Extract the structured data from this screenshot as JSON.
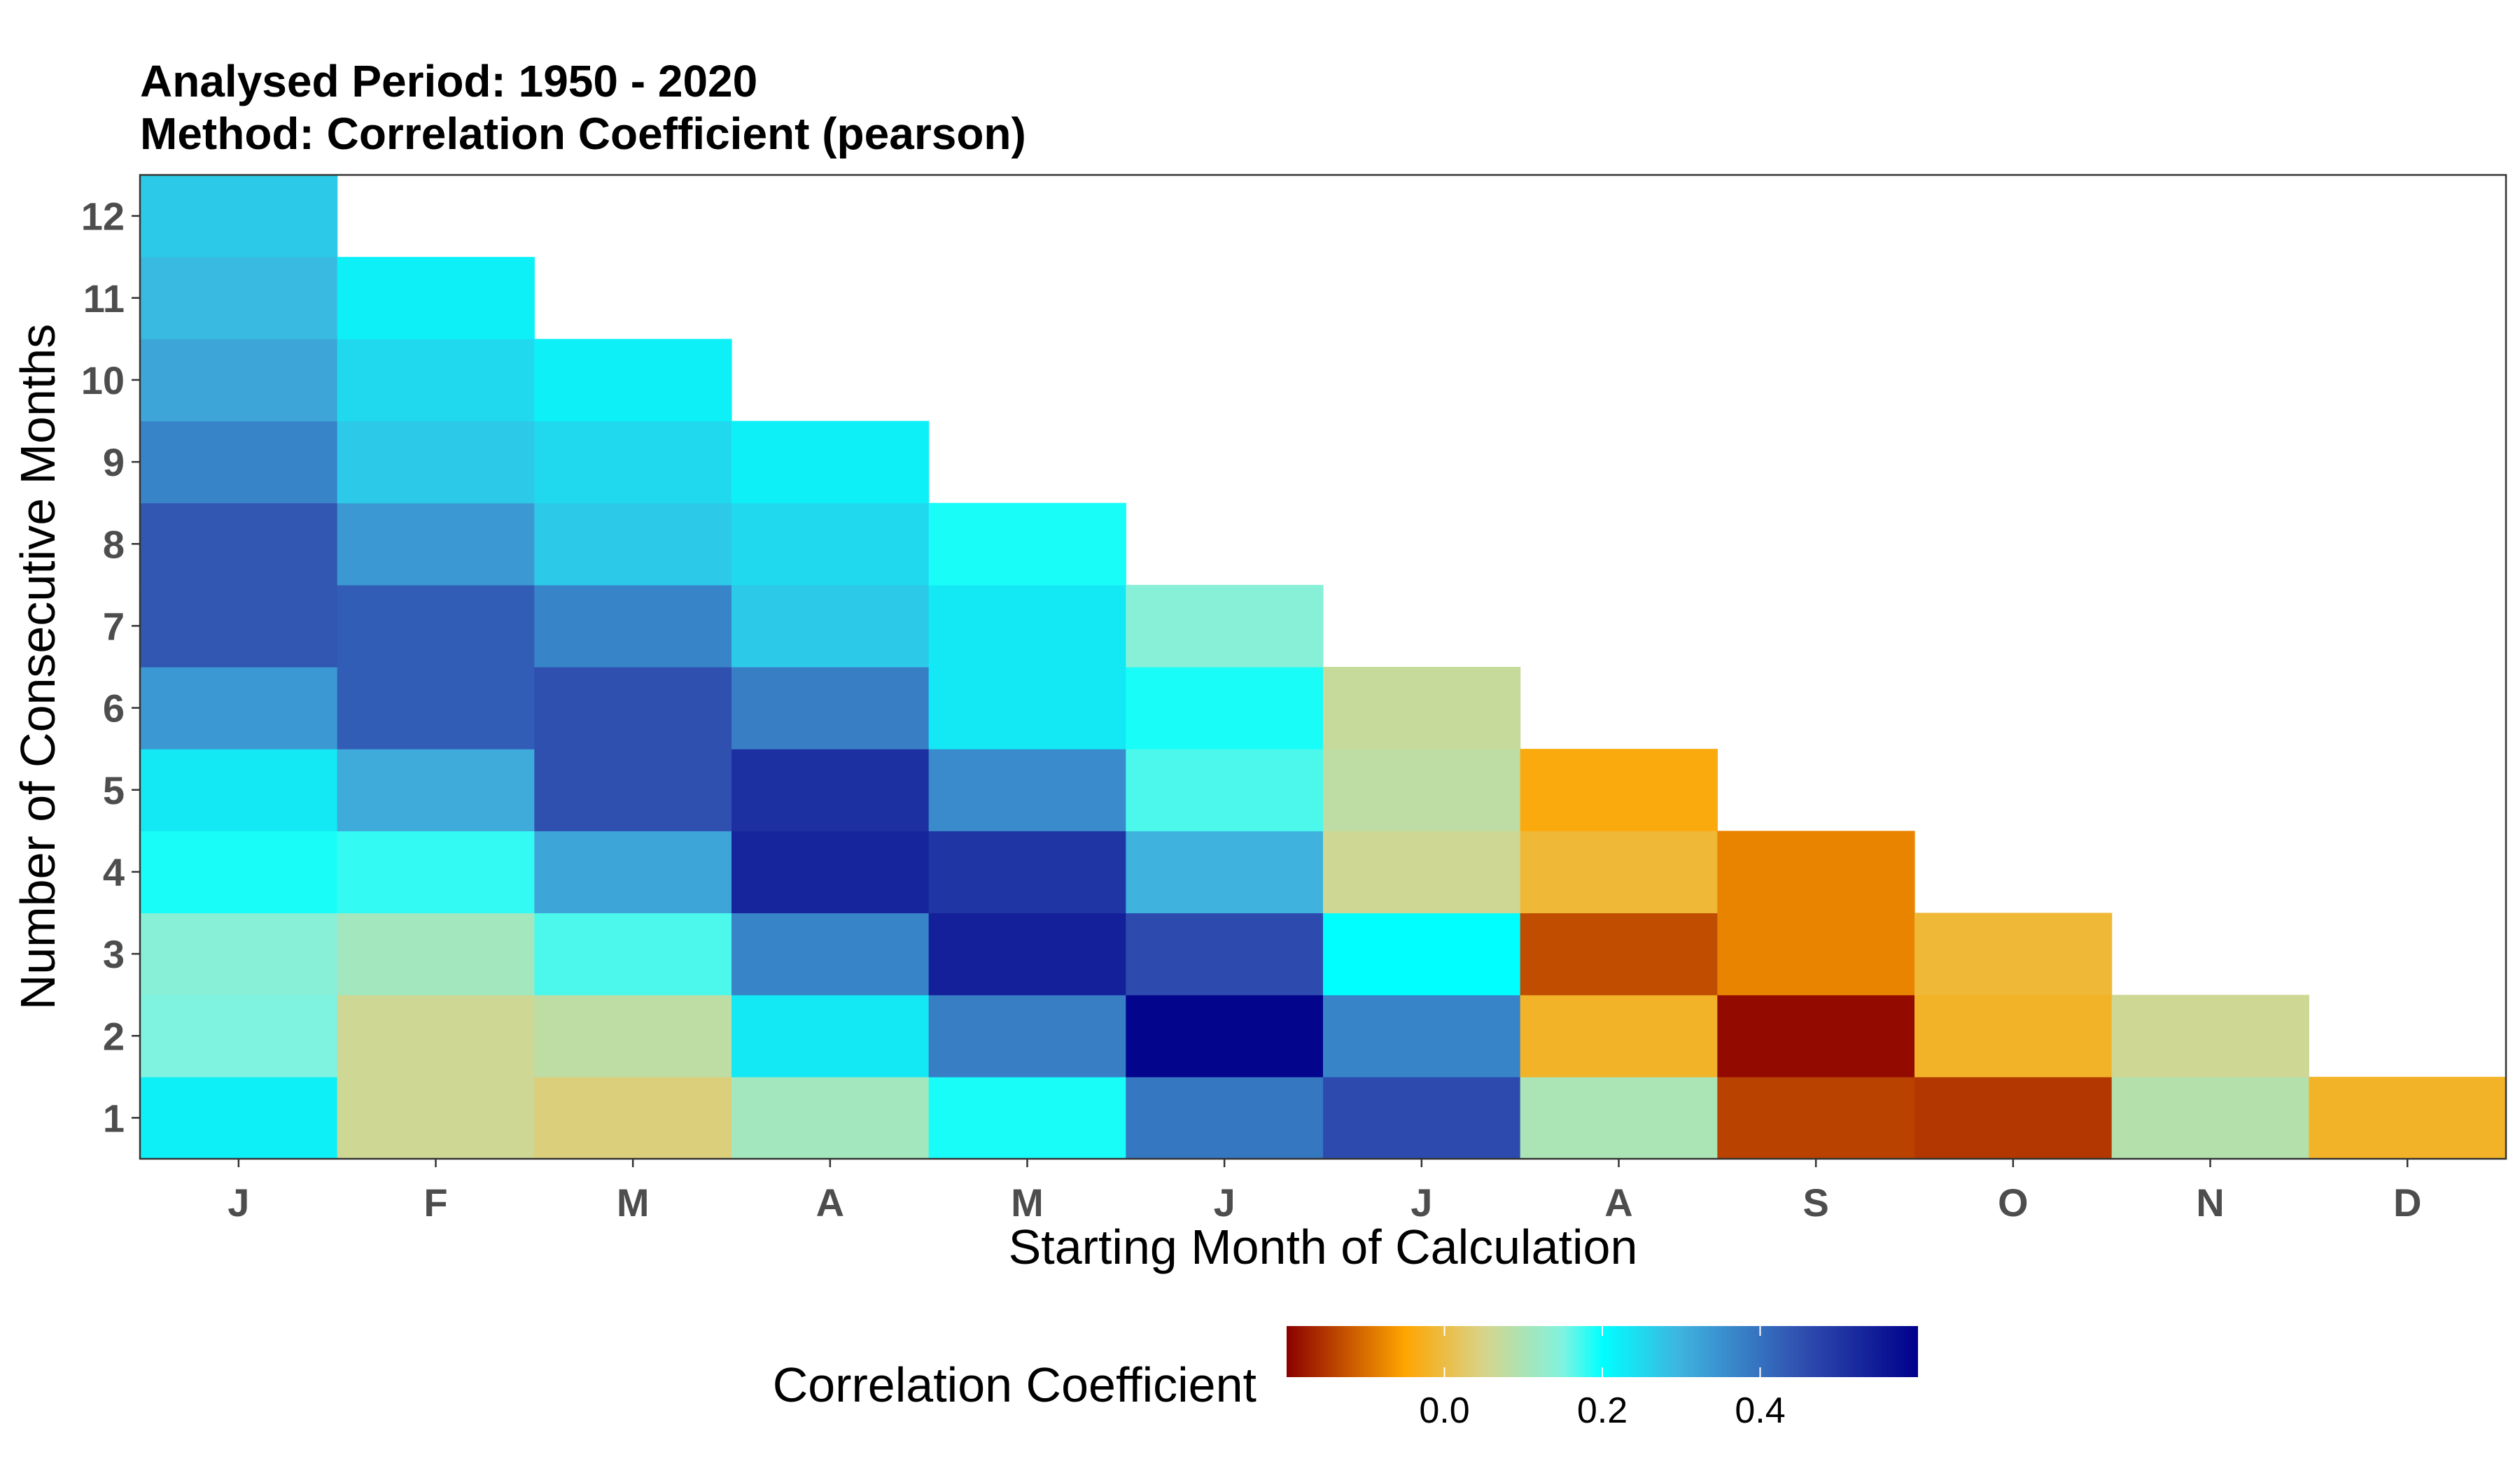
{
  "chart_data": {
    "type": "heatmap",
    "title_lines": [
      "Analysed Period: 1950 - 2020",
      "Method: Correlation Coefficient (pearson)"
    ],
    "xlabel": "Starting Month of Calculation",
    "ylabel": "Number of Consecutive Months",
    "x_categories": [
      "J",
      "F",
      "M",
      "A",
      "M",
      "J",
      "J",
      "A",
      "S",
      "O",
      "N",
      "D"
    ],
    "y_categories": [
      "1",
      "2",
      "3",
      "4",
      "5",
      "6",
      "7",
      "8",
      "9",
      "10",
      "11",
      "12"
    ],
    "values": [
      [
        0.22,
        0.06,
        0.04,
        0.11,
        0.19,
        0.39,
        0.46,
        0.1,
        -0.14,
        -0.15,
        0.09,
        -0.02
      ],
      [
        0.15,
        0.06,
        0.08,
        0.23,
        0.38,
        0.59,
        0.37,
        -0.02,
        -0.19,
        -0.02,
        0.06,
        null
      ],
      [
        0.14,
        0.11,
        0.17,
        0.37,
        0.54,
        0.46,
        0.2,
        -0.13,
        -0.08,
        -0.01,
        null,
        null
      ],
      [
        0.19,
        0.18,
        0.32,
        0.53,
        0.5,
        0.3,
        0.06,
        -0.01,
        -0.08,
        null,
        null,
        null
      ],
      [
        0.23,
        0.31,
        0.45,
        0.51,
        0.36,
        0.17,
        0.08,
        -0.04,
        null,
        null,
        null,
        null
      ],
      [
        0.34,
        0.43,
        0.45,
        0.38,
        0.23,
        0.19,
        0.07,
        null,
        null,
        null,
        null,
        null
      ],
      [
        0.44,
        0.43,
        0.37,
        0.27,
        0.23,
        0.14,
        null,
        null,
        null,
        null,
        null,
        null
      ],
      [
        0.44,
        0.34,
        0.27,
        0.25,
        0.19,
        null,
        null,
        null,
        null,
        null,
        null,
        null
      ],
      [
        0.37,
        0.27,
        0.25,
        0.22,
        null,
        null,
        null,
        null,
        null,
        null,
        null,
        null
      ],
      [
        0.32,
        0.25,
        0.22,
        null,
        null,
        null,
        null,
        null,
        null,
        null,
        null,
        null
      ],
      [
        0.29,
        0.22,
        null,
        null,
        null,
        null,
        null,
        null,
        null,
        null,
        null,
        null
      ],
      [
        0.27,
        null,
        null,
        null,
        null,
        null,
        null,
        null,
        null,
        null,
        null,
        null
      ]
    ],
    "legend": {
      "title": "Correlation Coefficient",
      "placement": "bottom",
      "range": [
        -0.2,
        0.6
      ],
      "ticks": [
        0.0,
        0.2,
        0.4
      ],
      "tick_labels": [
        "0.0",
        "0.2",
        "0.4"
      ],
      "color_stops": [
        {
          "value": -0.2,
          "color": "#8b0000"
        },
        {
          "value": -0.05,
          "color": "#ffa500"
        },
        {
          "value": 0.05,
          "color": "#d7d48a"
        },
        {
          "value": 0.15,
          "color": "#7ff3e0"
        },
        {
          "value": 0.2,
          "color": "#00ffff"
        },
        {
          "value": 0.3,
          "color": "#3fb2de"
        },
        {
          "value": 0.45,
          "color": "#3050b0"
        },
        {
          "value": 0.6,
          "color": "#00008b"
        }
      ]
    },
    "panel_border_color": "#333333",
    "tick_label_color": "#4d4d4d"
  }
}
